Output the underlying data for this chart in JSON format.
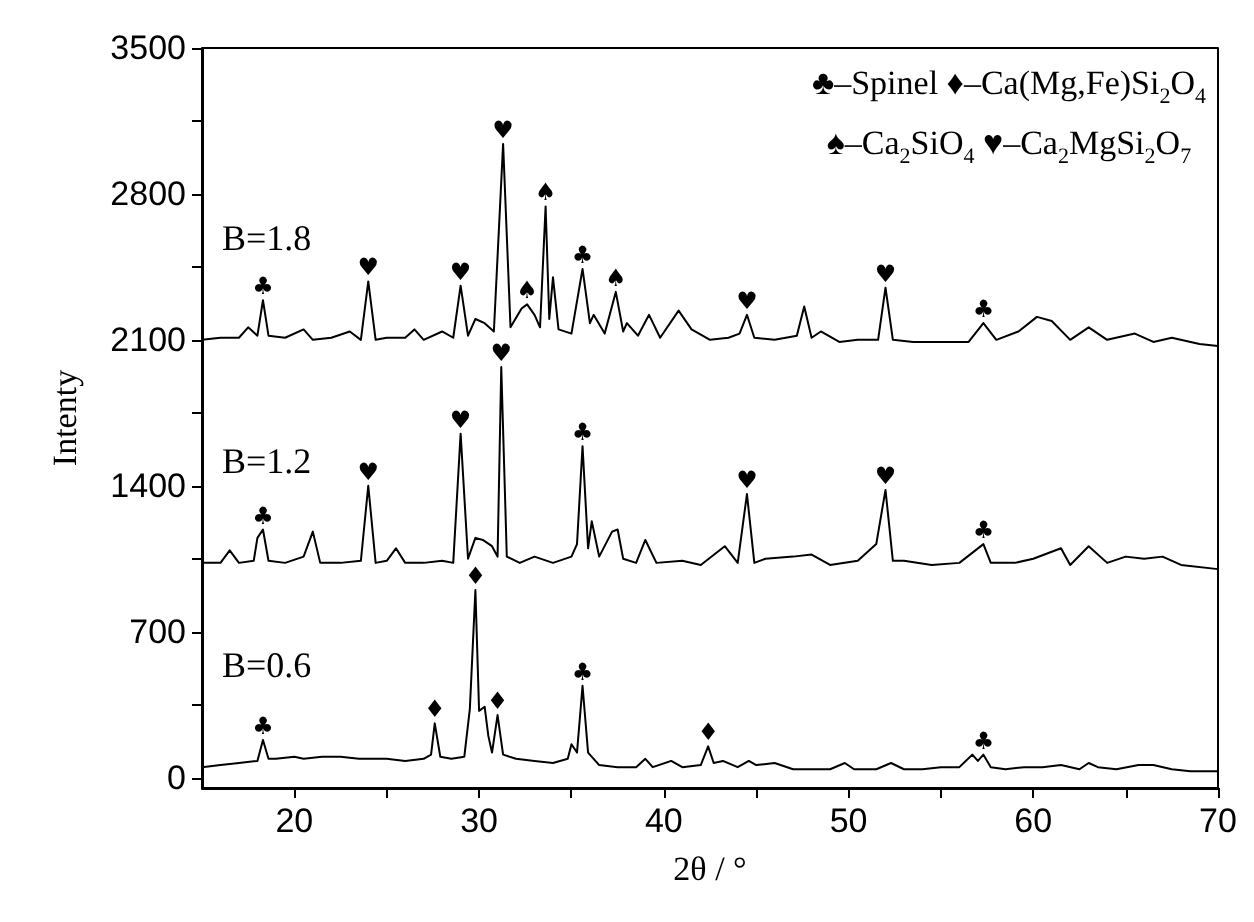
{
  "chart_data": {
    "type": "line",
    "xlabel": "2θ / °",
    "ylabel": "Intenty",
    "xlim": [
      15,
      70
    ],
    "xticks": [
      20,
      {
        "value": 25,
        "label": null
      },
      30,
      {
        "value": 35,
        "label": null
      },
      40,
      {
        "value": 45,
        "label": null
      },
      50,
      {
        "value": 55,
        "label": null
      },
      60,
      {
        "value": 65,
        "label": null
      },
      70
    ],
    "ylim": [
      -50,
      3500
    ],
    "yticks": [
      0,
      {
        "value": 350,
        "label": null
      },
      700,
      {
        "value": 1050,
        "label": null
      },
      1400,
      {
        "value": 1750,
        "label": null
      },
      2100,
      {
        "value": 2450,
        "label": null
      },
      2800,
      {
        "value": 3150,
        "label": null
      },
      3500
    ],
    "grid": false,
    "legend": false,
    "marker": "none",
    "line_style": "solid",
    "series": [
      {
        "name": "B=1.8",
        "color": "#000000",
        "x": [
          15,
          16,
          17,
          17.5,
          18,
          18.3,
          18.6,
          19.5,
          20.5,
          21,
          22,
          23,
          23.6,
          24,
          24.4,
          25,
          26,
          26.5,
          27,
          28,
          28.6,
          29,
          29.4,
          29.8,
          30.3,
          30.8,
          31.3,
          31.7,
          32.3,
          32.6,
          33,
          33.3,
          33.6,
          33.8,
          34,
          34.3,
          35,
          35.6,
          36,
          36.2,
          36.8,
          37.4,
          37.8,
          38,
          38.6,
          39.2,
          39.8,
          40.8,
          41.5,
          42.5,
          43.5,
          44.1,
          44.5,
          44.9,
          46,
          47.2,
          47.6,
          48,
          48.5,
          49.5,
          50.5,
          51.6,
          52,
          52.4,
          53.5,
          55,
          56.5,
          57.3,
          58,
          59.2,
          60.2,
          61,
          62,
          63,
          64,
          65.5,
          66.5,
          67.5,
          69,
          70
        ],
        "values": [
          2100,
          2110,
          2110,
          2160,
          2120,
          2290,
          2120,
          2110,
          2150,
          2100,
          2110,
          2140,
          2100,
          2380,
          2100,
          2110,
          2110,
          2150,
          2100,
          2140,
          2110,
          2360,
          2120,
          2200,
          2180,
          2140,
          3040,
          2160,
          2250,
          2270,
          2220,
          2160,
          2740,
          2200,
          2400,
          2150,
          2130,
          2440,
          2180,
          2220,
          2130,
          2330,
          2140,
          2180,
          2120,
          2220,
          2110,
          2240,
          2150,
          2100,
          2110,
          2130,
          2220,
          2110,
          2100,
          2120,
          2260,
          2110,
          2140,
          2090,
          2100,
          2100,
          2350,
          2100,
          2090,
          2090,
          2090,
          2180,
          2100,
          2140,
          2210,
          2190,
          2100,
          2160,
          2100,
          2130,
          2090,
          2110,
          2080,
          2070
        ]
      },
      {
        "name": "B=1.2",
        "color": "#000000",
        "x": [
          15,
          16,
          16.5,
          17,
          17.8,
          18,
          18.3,
          18.6,
          19.5,
          20.5,
          21,
          21.4,
          22.5,
          23.6,
          24,
          24.4,
          25,
          25.5,
          26,
          27,
          28,
          28.6,
          29,
          29.4,
          29.8,
          30.2,
          30.7,
          31,
          31.2,
          31.5,
          32.2,
          33,
          34,
          35,
          35.3,
          35.6,
          35.9,
          36.1,
          36.5,
          37.2,
          37.5,
          37.8,
          38.5,
          39,
          39.6,
          41,
          42,
          43.3,
          44,
          44.5,
          44.9,
          45.5,
          47,
          48,
          49,
          50.5,
          51.5,
          52,
          52.4,
          53,
          54.5,
          56,
          57.3,
          57.7,
          59,
          60,
          61.5,
          62,
          63,
          64,
          65,
          66,
          67,
          68,
          70
        ],
        "values": [
          1030,
          1030,
          1090,
          1030,
          1040,
          1150,
          1190,
          1040,
          1030,
          1060,
          1180,
          1030,
          1030,
          1040,
          1400,
          1030,
          1040,
          1100,
          1030,
          1030,
          1040,
          1030,
          1650,
          1050,
          1150,
          1140,
          1110,
          1060,
          1970,
          1060,
          1030,
          1060,
          1030,
          1060,
          1120,
          1590,
          1100,
          1230,
          1060,
          1180,
          1190,
          1050,
          1030,
          1140,
          1030,
          1040,
          1020,
          1110,
          1030,
          1360,
          1030,
          1050,
          1060,
          1070,
          1020,
          1040,
          1120,
          1380,
          1040,
          1040,
          1020,
          1030,
          1120,
          1030,
          1030,
          1050,
          1100,
          1020,
          1110,
          1030,
          1060,
          1050,
          1060,
          1020,
          1000
        ]
      },
      {
        "name": "B=0.6",
        "color": "#000000",
        "x": [
          15,
          16,
          17,
          18,
          18.3,
          18.6,
          19,
          20,
          20.5,
          21.5,
          22.5,
          23.5,
          25,
          26,
          27,
          27.4,
          27.6,
          27.9,
          28.5,
          29.2,
          29.5,
          29.8,
          30,
          30.3,
          30.5,
          30.7,
          31,
          31.3,
          32,
          33,
          34,
          34.8,
          35,
          35.3,
          35.6,
          35.9,
          36.5,
          37.5,
          38.5,
          39,
          39.4,
          40.4,
          41,
          42,
          42.4,
          42.7,
          43.2,
          44,
          44.6,
          45,
          46,
          47,
          48,
          49,
          49.8,
          50.3,
          51.5,
          52.3,
          53,
          54,
          55,
          56,
          56.7,
          57,
          57.3,
          57.7,
          58.5,
          59.5,
          60.5,
          61.5,
          62.5,
          63,
          63.5,
          64.5,
          65.7,
          66.5,
          67.5,
          68.5,
          70
        ],
        "values": [
          50,
          60,
          70,
          80,
          180,
          90,
          90,
          100,
          90,
          100,
          100,
          90,
          90,
          80,
          90,
          110,
          260,
          100,
          90,
          100,
          330,
          900,
          320,
          340,
          200,
          120,
          300,
          110,
          90,
          80,
          70,
          90,
          160,
          120,
          440,
          120,
          60,
          50,
          50,
          90,
          50,
          80,
          50,
          60,
          150,
          70,
          80,
          50,
          80,
          60,
          70,
          40,
          40,
          40,
          70,
          40,
          40,
          70,
          40,
          40,
          50,
          50,
          110,
          80,
          110,
          50,
          40,
          50,
          50,
          60,
          40,
          70,
          50,
          40,
          60,
          60,
          40,
          30,
          30
        ]
      }
    ],
    "annotations": [
      "♣–Spinel ♦–Ca(Mg,Fe)Si$_{2}$O$_{4}$",
      "♠–Ca$_{2}$SiO$_{4}$ ♥–Ca$_{2}$MgSi$_{2}$O$_{7}$",
      {
        "text": "♣",
        "x": 18.3,
        "y": 2290
      },
      {
        "text": "♥",
        "x": 24,
        "y": 2380
      },
      {
        "text": "♥",
        "x": 29,
        "y": 2360
      },
      {
        "text": "♥",
        "x": 31.3,
        "y": 3040
      },
      {
        "text": "♠",
        "x": 32.6,
        "y": 2270
      },
      {
        "text": "♠",
        "x": 33.6,
        "y": 2740
      },
      {
        "text": "♣",
        "x": 35.6,
        "y": 2440
      },
      {
        "text": "♠",
        "x": 37.4,
        "y": 2330
      },
      {
        "text": "♥",
        "x": 44.5,
        "y": 2220
      },
      {
        "text": "♥",
        "x": 52,
        "y": 2350
      },
      {
        "text": "♣",
        "x": 57.3,
        "y": 2180
      },
      {
        "text": "♣",
        "x": 18.3,
        "y": 1190
      },
      {
        "text": "♥",
        "x": 24,
        "y": 1400
      },
      {
        "text": "♥",
        "x": 29,
        "y": 1650
      },
      {
        "text": "♥",
        "x": 31.2,
        "y": 1970
      },
      {
        "text": "♣",
        "x": 35.6,
        "y": 1590
      },
      {
        "text": "♥",
        "x": 44.5,
        "y": 1360
      },
      {
        "text": "♥",
        "x": 52,
        "y": 1380
      },
      {
        "text": "♣",
        "x": 57.3,
        "y": 1120
      },
      {
        "text": "♣",
        "x": 18.3,
        "y": 180
      },
      {
        "text": "♦",
        "x": 27.6,
        "y": 260
      },
      {
        "text": "♦",
        "x": 29.8,
        "y": 900
      },
      {
        "text": "♦",
        "x": 31,
        "y": 300
      },
      {
        "text": "♣",
        "x": 35.6,
        "y": 440
      },
      {
        "text": "♦",
        "x": 42.4,
        "y": 150
      },
      {
        "text": "♣",
        "x": 57.3,
        "y": 110
      }
    ]
  }
}
